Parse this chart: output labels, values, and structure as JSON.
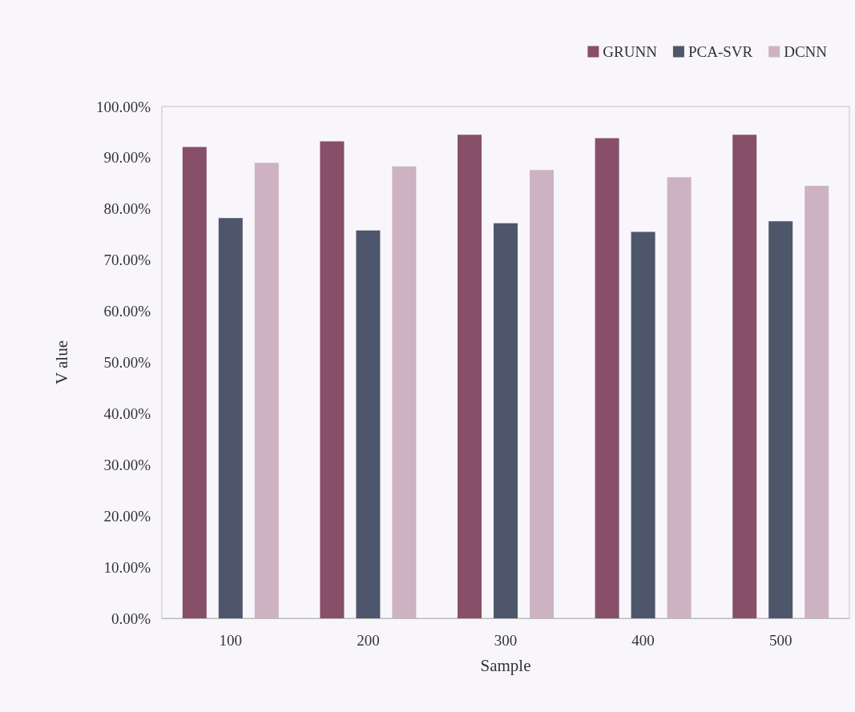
{
  "chart_data": {
    "type": "bar",
    "xlabel": "Sample",
    "ylabel": "V alue",
    "categories": [
      "100",
      "200",
      "300",
      "400",
      "500"
    ],
    "series": [
      {
        "name": "GRUNN",
        "color": "#874f68",
        "values": [
          92.1,
          93.2,
          94.5,
          93.8,
          94.5
        ]
      },
      {
        "name": "PCA-SVR",
        "color": "#4e566b",
        "values": [
          78.2,
          75.8,
          77.2,
          75.5,
          77.6
        ]
      },
      {
        "name": "DCNN",
        "color": "#cdb3c1",
        "values": [
          89.0,
          88.3,
          87.6,
          86.2,
          84.5
        ]
      }
    ],
    "ylim": [
      0,
      100
    ],
    "yticks": [
      {
        "value": 0,
        "label": "0.00%"
      },
      {
        "value": 10,
        "label": "10.00%"
      },
      {
        "value": 20,
        "label": "20.00%"
      },
      {
        "value": 30,
        "label": "30.00%"
      },
      {
        "value": 40,
        "label": "40.00%"
      },
      {
        "value": 50,
        "label": "50.00%"
      },
      {
        "value": 60,
        "label": "60.00%"
      },
      {
        "value": 70,
        "label": "70.00%"
      },
      {
        "value": 80,
        "label": "80.00%"
      },
      {
        "value": 90,
        "label": "90.00%"
      },
      {
        "value": 100,
        "label": "100.00%"
      }
    ],
    "grid": false,
    "legend": "top right"
  }
}
